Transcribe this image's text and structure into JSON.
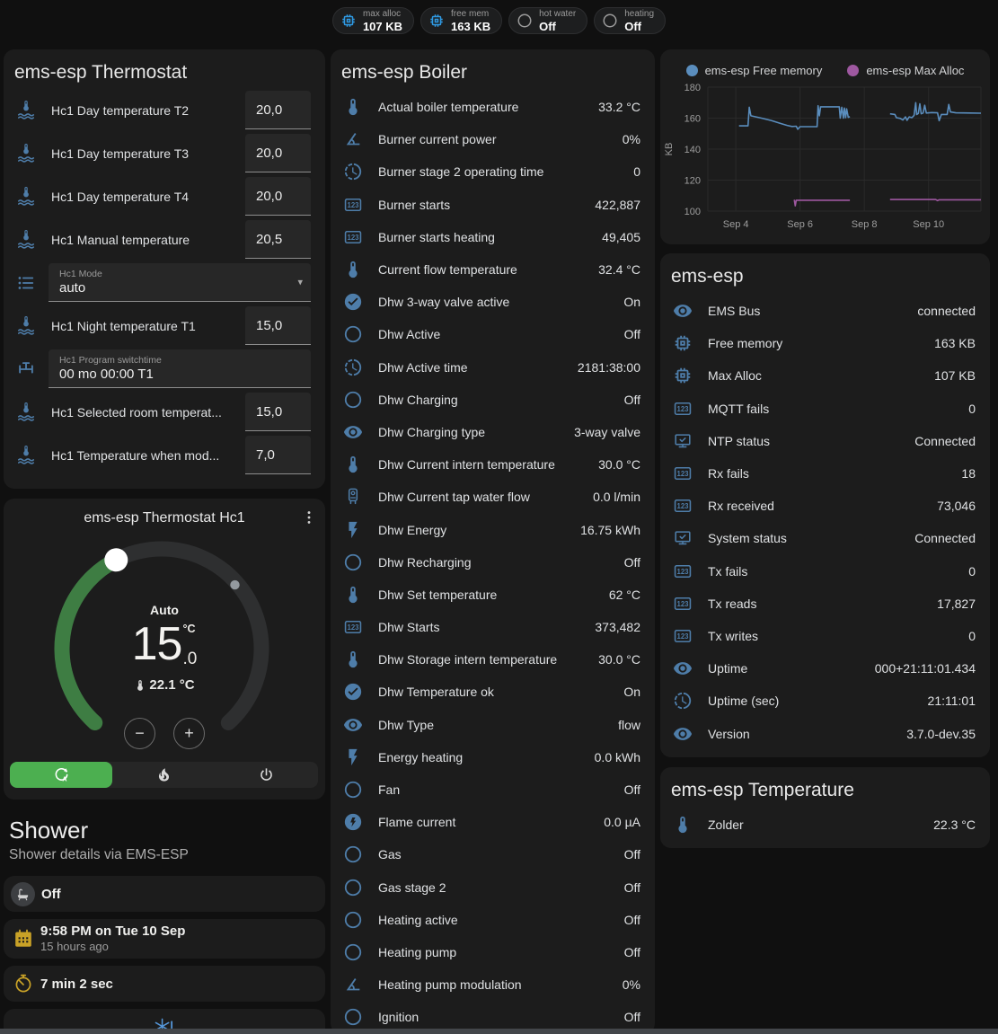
{
  "colors": {
    "background": "#101010",
    "card": "#1c1c1c",
    "text_primary": "#e3e3e3",
    "text_secondary": "#9b9b9b",
    "accent_blue": "#4e7da9",
    "chip_blue": "#2f9ae3",
    "amber": "#c9a227",
    "green_active": "#4caf50",
    "green_arc": "#3e7d43",
    "snowflake_blue": "#5596d8"
  },
  "topbar": {
    "chips": [
      {
        "name": "max-alloc",
        "icon": "memory",
        "icon_color": "#2f9ae3",
        "label": "max alloc",
        "value": "107 KB"
      },
      {
        "name": "free-mem",
        "icon": "memory",
        "icon_color": "#2f9ae3",
        "label": "free mem",
        "value": "163 KB"
      },
      {
        "name": "hot-water",
        "icon": "circle-outline",
        "icon_color": "#9b9b9b",
        "label": "hot water",
        "value": "Off"
      },
      {
        "name": "heating",
        "icon": "circle-outline",
        "icon_color": "#9b9b9b",
        "label": "heating",
        "value": "Off"
      }
    ]
  },
  "cards": {
    "thermostat": {
      "title": "ems-esp Thermostat",
      "rows": [
        {
          "icon": "coolant-thermometer",
          "label": "Hc1 Day temperature T2",
          "control": "number",
          "value": "20,0"
        },
        {
          "icon": "coolant-thermometer",
          "label": "Hc1 Day temperature T3",
          "control": "number",
          "value": "20,0"
        },
        {
          "icon": "coolant-thermometer",
          "label": "Hc1 Day temperature T4",
          "control": "number",
          "value": "20,0"
        },
        {
          "icon": "coolant-thermometer",
          "label": "Hc1 Manual temperature",
          "control": "number",
          "value": "20,5"
        },
        {
          "icon": "list",
          "field_label": "Hc1 Mode",
          "control": "select",
          "value": "auto"
        },
        {
          "icon": "coolant-thermometer",
          "label": "Hc1 Night temperature T1",
          "control": "number",
          "value": "15,0"
        },
        {
          "icon": "pipe-valve",
          "field_label": "Hc1 Program switchtime",
          "control": "text",
          "value": "00 mo 00:00 T1"
        },
        {
          "icon": "coolant-thermometer",
          "label": "Hc1 Selected room temperat...",
          "control": "number",
          "value": "15,0"
        },
        {
          "icon": "coolant-thermometer",
          "label": "Hc1 Temperature when mod...",
          "control": "number",
          "value": "7,0"
        }
      ]
    },
    "dial": {
      "title": "ems-esp Thermostat Hc1",
      "mode_label": "Auto",
      "target_whole": "15",
      "target_unit": "°C",
      "target_fraction": ".0",
      "current_temperature": "22.1 °C",
      "minus_label": "−",
      "plus_label": "+",
      "modes": [
        {
          "name": "auto",
          "icon": "thermostat-auto",
          "active": true
        },
        {
          "name": "heat",
          "icon": "fire",
          "active": false
        },
        {
          "name": "off",
          "icon": "power",
          "active": false
        }
      ]
    },
    "shower": {
      "title": "Shower",
      "subtitle": "Shower details via EMS-ESP",
      "state": "Off",
      "last_time": "9:58 PM on Tue 10 Sep",
      "last_relative": "15 hours ago",
      "duration": "7 min 2 sec"
    },
    "boiler": {
      "title": "ems-esp Boiler",
      "rows": [
        {
          "icon": "thermometer",
          "label": "Actual boiler temperature",
          "value": "33.2 °C"
        },
        {
          "icon": "angle-acute",
          "label": "Burner current power",
          "value": "0%"
        },
        {
          "icon": "progress-clock",
          "label": "Burner stage 2 operating time",
          "value": "0"
        },
        {
          "icon": "counter",
          "label": "Burner starts",
          "value": "422,887"
        },
        {
          "icon": "counter",
          "label": "Burner starts heating",
          "value": "49,405"
        },
        {
          "icon": "thermometer",
          "label": "Current flow temperature",
          "value": "32.4 °C"
        },
        {
          "icon": "check-circle",
          "label": "Dhw 3-way valve active",
          "value": "On"
        },
        {
          "icon": "circle-outline",
          "label": "Dhw Active",
          "value": "Off"
        },
        {
          "icon": "progress-clock",
          "label": "Dhw Active time",
          "value": "2181:38:00"
        },
        {
          "icon": "circle-outline",
          "label": "Dhw Charging",
          "value": "Off"
        },
        {
          "icon": "eye",
          "label": "Dhw Charging type",
          "value": "3-way valve"
        },
        {
          "icon": "thermometer",
          "label": "Dhw Current intern temperature",
          "value": "30.0 °C"
        },
        {
          "icon": "water-boiler",
          "label": "Dhw Current tap water flow",
          "value": "0.0 l/min"
        },
        {
          "icon": "flash",
          "label": "Dhw Energy",
          "value": "16.75 kWh"
        },
        {
          "icon": "circle-outline",
          "label": "Dhw Recharging",
          "value": "Off"
        },
        {
          "icon": "thermometer",
          "label": "Dhw Set temperature",
          "value": "62 °C"
        },
        {
          "icon": "counter",
          "label": "Dhw Starts",
          "value": "373,482"
        },
        {
          "icon": "thermometer",
          "label": "Dhw Storage intern temperature",
          "value": "30.0 °C"
        },
        {
          "icon": "check-circle",
          "label": "Dhw Temperature ok",
          "value": "On"
        },
        {
          "icon": "eye",
          "label": "Dhw Type",
          "value": "flow"
        },
        {
          "icon": "flash",
          "label": "Energy heating",
          "value": "0.0 kWh"
        },
        {
          "icon": "circle-outline",
          "label": "Fan",
          "value": "Off"
        },
        {
          "icon": "flash-circle",
          "label": "Flame current",
          "value": "0.0 µA"
        },
        {
          "icon": "circle-outline",
          "label": "Gas",
          "value": "Off"
        },
        {
          "icon": "circle-outline",
          "label": "Gas stage 2",
          "value": "Off"
        },
        {
          "icon": "circle-outline",
          "label": "Heating active",
          "value": "Off"
        },
        {
          "icon": "circle-outline",
          "label": "Heating pump",
          "value": "Off"
        },
        {
          "icon": "angle-acute",
          "label": "Heating pump modulation",
          "value": "0%"
        },
        {
          "icon": "circle-outline",
          "label": "Ignition",
          "value": "Off"
        }
      ]
    },
    "emsesp": {
      "title": "ems-esp",
      "rows": [
        {
          "icon": "eye",
          "label": "EMS Bus",
          "value": "connected"
        },
        {
          "icon": "memory",
          "label": "Free memory",
          "value": "163 KB"
        },
        {
          "icon": "memory",
          "label": "Max Alloc",
          "value": "107 KB"
        },
        {
          "icon": "counter",
          "label": "MQTT fails",
          "value": "0"
        },
        {
          "icon": "monitor-check",
          "label": "NTP status",
          "value": "Connected"
        },
        {
          "icon": "counter",
          "label": "Rx fails",
          "value": "18"
        },
        {
          "icon": "counter",
          "label": "Rx received",
          "value": "73,046"
        },
        {
          "icon": "monitor-check",
          "label": "System status",
          "value": "Connected"
        },
        {
          "icon": "counter",
          "label": "Tx fails",
          "value": "0"
        },
        {
          "icon": "counter",
          "label": "Tx reads",
          "value": "17,827"
        },
        {
          "icon": "counter",
          "label": "Tx writes",
          "value": "0"
        },
        {
          "icon": "eye",
          "label": "Uptime",
          "value": "000+21:11:01.434"
        },
        {
          "icon": "progress-clock",
          "label": "Uptime (sec)",
          "value": "21:11:01"
        },
        {
          "icon": "eye",
          "label": "Version",
          "value": "3.7.0-dev.35"
        }
      ]
    },
    "temperature": {
      "title": "ems-esp Temperature",
      "rows": [
        {
          "icon": "thermometer",
          "label": "Zolder",
          "value": "22.3 °C"
        }
      ]
    }
  },
  "chart_data": {
    "type": "line",
    "title": "",
    "xlabel": "",
    "ylabel": "KB",
    "grid": true,
    "legend_position": "top",
    "ylim": [
      100,
      180
    ],
    "y_ticks": [
      100,
      120,
      140,
      160,
      180
    ],
    "xlim": [
      3.13,
      11.63
    ],
    "x_ticks": [
      {
        "day": 4,
        "label": "Sep 4"
      },
      {
        "day": 6,
        "label": "Sep 6"
      },
      {
        "day": 8,
        "label": "Sep 8"
      },
      {
        "day": 10,
        "label": "Sep 10"
      }
    ],
    "series": [
      {
        "name": "ems-esp Free memory",
        "color": "#5a8dbd",
        "unit": "KB",
        "segments": [
          [
            [
              4.1,
              155
            ],
            [
              4.38,
              155
            ],
            [
              4.42,
              167
            ],
            [
              4.47,
              161.5
            ],
            [
              4.8,
              160
            ],
            [
              5.1,
              158.5
            ],
            [
              5.4,
              156.5
            ],
            [
              5.6,
              155.3
            ],
            [
              5.75,
              154.6
            ],
            [
              5.88,
              154.8
            ],
            [
              5.93,
              152.8
            ],
            [
              6.0,
              154.5
            ],
            [
              6.53,
              154.5
            ],
            [
              6.56,
              168
            ],
            [
              6.6,
              161.5
            ],
            [
              6.64,
              167.3
            ],
            [
              7.22,
              167.3
            ],
            [
              7.25,
              160
            ],
            [
              7.3,
              167
            ],
            [
              7.35,
              160
            ],
            [
              7.38,
              166.5
            ],
            [
              7.42,
              160.3
            ],
            [
              7.45,
              166
            ],
            [
              7.5,
              160.5
            ],
            [
              7.55,
              161
            ]
          ],
          [
            [
              8.8,
              162.8
            ],
            [
              8.95,
              162.4
            ],
            [
              9.0,
              160.3
            ],
            [
              9.12,
              159.8
            ],
            [
              9.2,
              158.8
            ],
            [
              9.28,
              160.8
            ],
            [
              9.33,
              158.6
            ],
            [
              9.4,
              160.8
            ],
            [
              9.48,
              160.3
            ],
            [
              9.55,
              161.8
            ],
            [
              9.6,
              170
            ],
            [
              9.63,
              162.3
            ],
            [
              9.68,
              163
            ],
            [
              9.73,
              169.3
            ],
            [
              9.77,
              162.8
            ],
            [
              9.83,
              163.3
            ],
            [
              9.88,
              168.3
            ],
            [
              9.93,
              163.3
            ],
            [
              10.1,
              163.6
            ],
            [
              10.28,
              163.4
            ],
            [
              10.33,
              158.4
            ],
            [
              10.4,
              162.4
            ],
            [
              10.58,
              162.4
            ],
            [
              10.63,
              168.8
            ],
            [
              10.68,
              164
            ],
            [
              10.85,
              163.4
            ],
            [
              11.3,
              163.3
            ],
            [
              11.63,
              163.2
            ]
          ]
        ]
      },
      {
        "name": "ems-esp Max Alloc",
        "color": "#9e58a0",
        "unit": "KB",
        "segments": [
          [
            [
              5.82,
              107.3
            ],
            [
              5.85,
              103.4
            ],
            [
              5.88,
              107
            ],
            [
              7.55,
              107
            ]
          ],
          [
            [
              8.8,
              107.5
            ],
            [
              10.22,
              107.5
            ],
            [
              10.28,
              106.8
            ],
            [
              10.33,
              107.3
            ],
            [
              11.63,
              107.3
            ]
          ]
        ]
      }
    ]
  }
}
